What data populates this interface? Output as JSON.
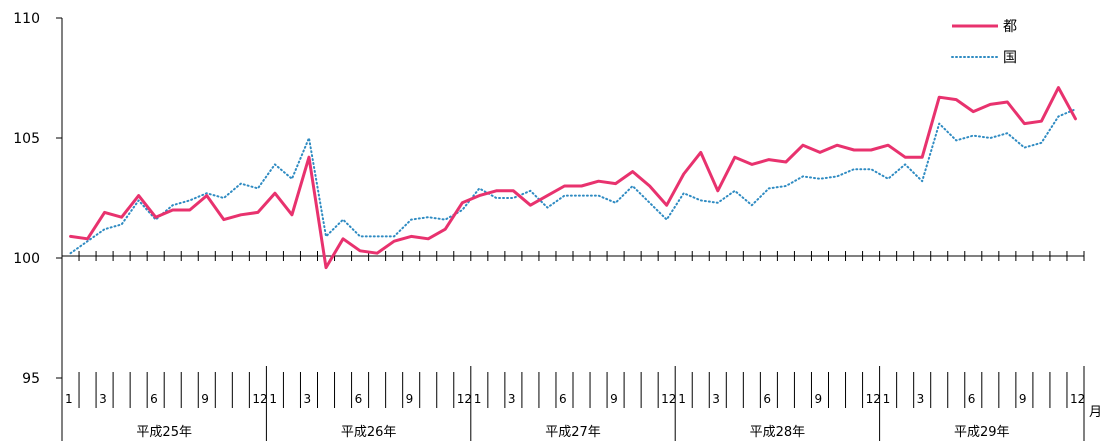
{
  "chart_data": {
    "type": "line",
    "title": "",
    "xlabel": "",
    "ylabel": "",
    "ylim": [
      95,
      110
    ],
    "yticks": [
      95,
      100,
      105,
      110
    ],
    "x_unit": "月",
    "month_labels": [
      "1",
      "3",
      "6",
      "9",
      "12"
    ],
    "years": [
      "平成25年",
      "平成26年",
      "平成27年",
      "平成28年",
      "平成29年"
    ],
    "legend_position": "top-right",
    "series": [
      {
        "name": "都",
        "color": "#e8326e",
        "style": "solid",
        "values": [
          100.9,
          100.8,
          101.9,
          101.7,
          102.6,
          101.7,
          102.0,
          102.0,
          102.6,
          101.6,
          101.8,
          101.9,
          102.7,
          101.8,
          104.2,
          99.6,
          100.8,
          100.3,
          100.2,
          100.7,
          100.9,
          100.8,
          101.2,
          102.3,
          102.6,
          102.8,
          102.8,
          102.2,
          102.6,
          103.0,
          103.0,
          103.2,
          103.1,
          103.6,
          103.0,
          102.2,
          103.5,
          104.4,
          102.8,
          104.2,
          103.9,
          104.1,
          104.0,
          104.7,
          104.4,
          104.7,
          104.5,
          104.5,
          104.7,
          104.2,
          104.2,
          106.7,
          106.6,
          106.1,
          106.4,
          106.5,
          105.6,
          105.7,
          107.1,
          105.8
        ],
        "note": ""
      },
      {
        "name": "国",
        "color": "#2f8bc2",
        "style": "dotted",
        "values": [
          100.2,
          100.7,
          101.2,
          101.4,
          102.4,
          101.6,
          102.2,
          102.4,
          102.7,
          102.5,
          103.1,
          102.9,
          103.9,
          103.3,
          105.0,
          100.9,
          101.6,
          100.9,
          100.9,
          100.9,
          101.6,
          101.7,
          101.6,
          102.0,
          102.9,
          102.5,
          102.5,
          102.8,
          102.1,
          102.6,
          102.6,
          102.6,
          102.3,
          103.0,
          102.3,
          101.6,
          102.7,
          102.4,
          102.3,
          102.8,
          102.2,
          102.9,
          103.0,
          103.4,
          103.3,
          103.4,
          103.7,
          103.7,
          103.3,
          103.9,
          103.2,
          105.6,
          104.9,
          105.1,
          105.0,
          105.2,
          104.6,
          104.8,
          105.9,
          106.2
        ]
      }
    ]
  }
}
